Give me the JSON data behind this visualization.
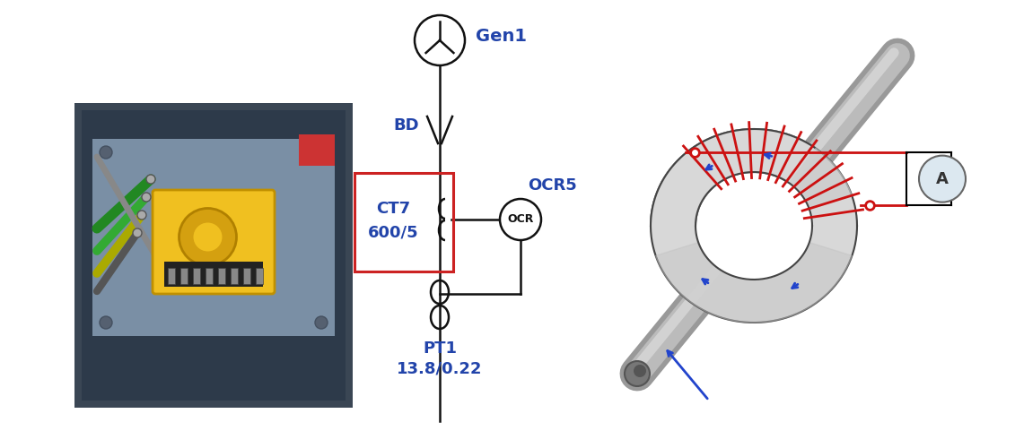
{
  "text_color": "#2244aa",
  "line_color": "#111111",
  "red_color": "#cc1111",
  "blue_color": "#2244cc",
  "background": "#ffffff",
  "gen1_label": "Gen1",
  "bd_label": "BD",
  "ct7_line1": "CT7",
  "ct7_line2": "600/5",
  "ocr5_label": "OCR5",
  "ocr_label": "OCR",
  "pt1_line1": "PT1",
  "pt1_line2": "13.8/0.22",
  "a_label": "A",
  "photo_bg": "#3a4a5a",
  "photo_panel": "#2a3848",
  "photo_plate": "#7a8fa8",
  "photo_yellow": "#f0c020",
  "photo_yellow_dark": "#d0a010"
}
